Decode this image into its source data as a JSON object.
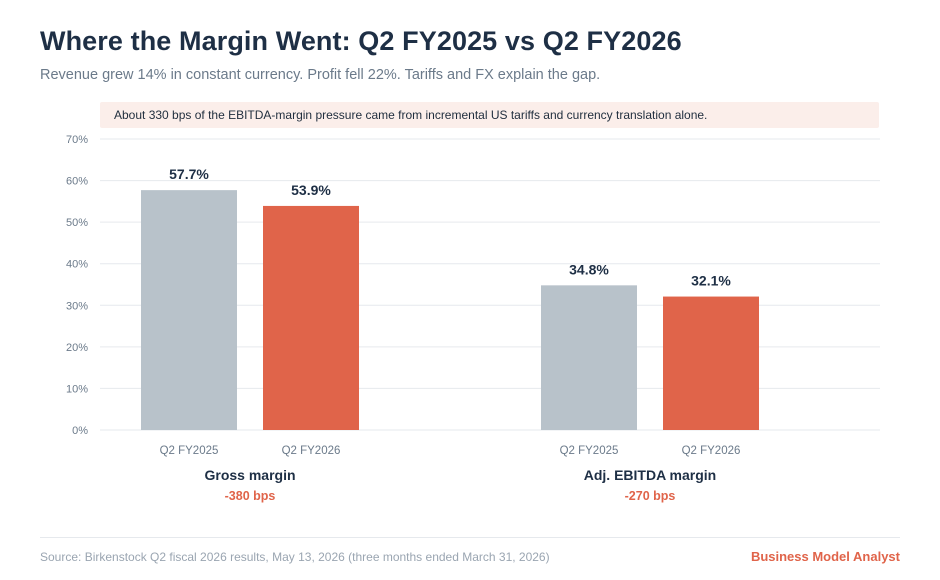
{
  "header": {
    "title": "Where the Margin Went: Q2 FY2025 vs Q2 FY2026",
    "subtitle": "Revenue grew 14% in constant currency. Profit fell 22%. Tariffs and FX explain the gap."
  },
  "annotation": {
    "text": "About 330 bps of the EBITDA-margin pressure came from incremental US tariffs and currency translation alone."
  },
  "footer": {
    "source": "Source: Birkenstock Q2 fiscal 2026 results, May 13, 2026 (three months ended March 31, 2026)",
    "brand": "Business Model Analyst"
  },
  "colors": {
    "prior_year": "#b8c2ca",
    "current_year": "#e0644a",
    "delta_text": "#e0644a",
    "gridline": "#e6e9ed",
    "axis_text": "#6b7a8a",
    "label_text": "#1e2f45"
  },
  "chart_data": {
    "type": "bar",
    "grouped": true,
    "ylim": [
      0,
      70
    ],
    "yticks": [
      0,
      10,
      20,
      30,
      40,
      50,
      60,
      70
    ],
    "ytick_suffix": "%",
    "grid": true,
    "groups": [
      {
        "name": "Gross margin",
        "delta": "-380 bps",
        "bars": [
          {
            "label": "Q2 FY2025",
            "value": 57.7,
            "value_label": "57.7%"
          },
          {
            "label": "Q2 FY2026",
            "value": 53.9,
            "value_label": "53.9%"
          }
        ]
      },
      {
        "name": "Adj. EBITDA margin",
        "delta": "-270 bps",
        "bars": [
          {
            "label": "Q2 FY2025",
            "value": 34.8,
            "value_label": "34.8%"
          },
          {
            "label": "Q2 FY2026",
            "value": 32.1,
            "value_label": "32.1%"
          }
        ]
      }
    ]
  }
}
